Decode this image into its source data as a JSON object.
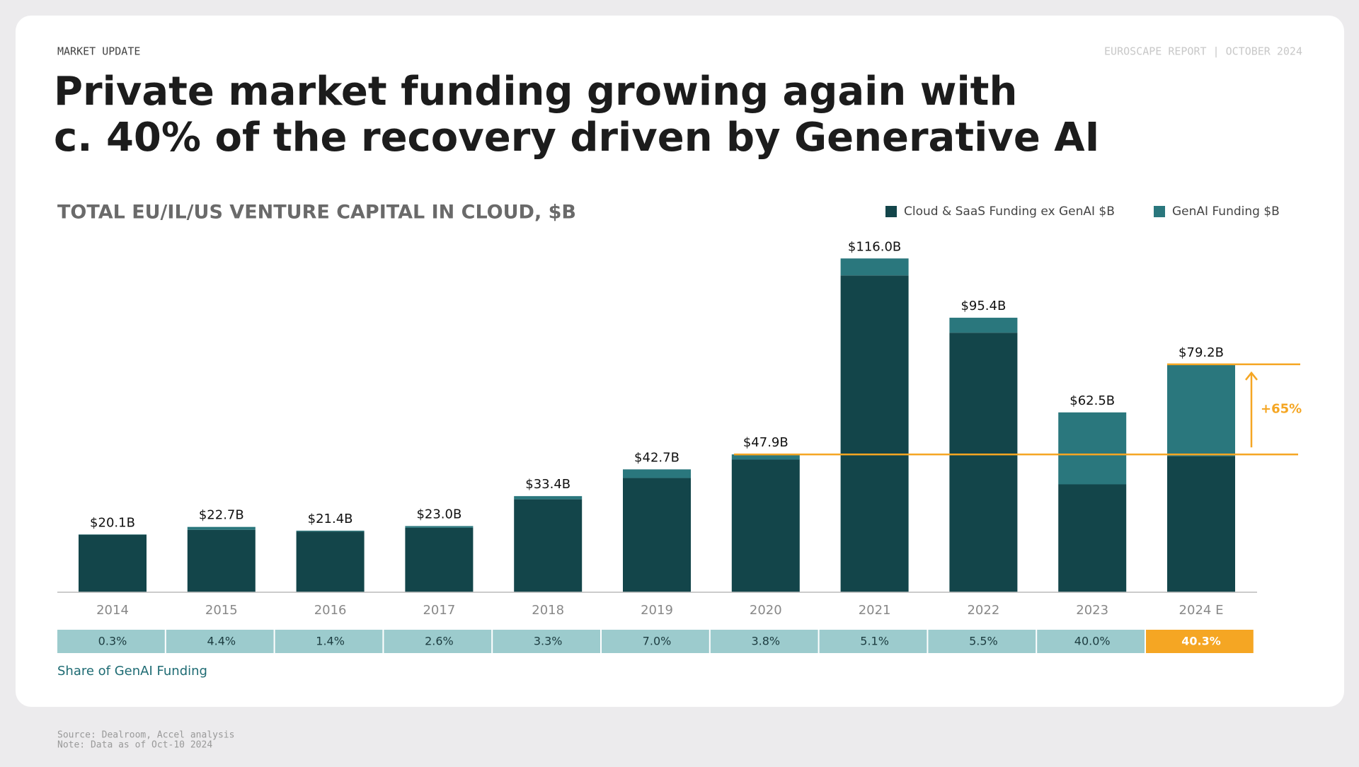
{
  "header": {
    "kicker": "MARKET UPDATE",
    "report": "EUROSCAPE REPORT | OCTOBER 2024",
    "title_lines": [
      "Private market funding growing again with",
      "c. 40% of the recovery driven by Generative AI"
    ]
  },
  "chart_data": {
    "type": "stacked_bar",
    "title": "TOTAL EU/IL/US VENTURE CAPITAL IN CLOUD, $B",
    "categories": [
      "2014",
      "2015",
      "2016",
      "2017",
      "2018",
      "2019",
      "2020",
      "2021",
      "2022",
      "2023",
      "2024 E"
    ],
    "series": [
      {
        "name": "Cloud & SaaS Funding ex GenAI $B",
        "color": "#13454a",
        "values": [
          20.0,
          21.7,
          21.1,
          22.4,
          32.3,
          39.7,
          46.1,
          110.1,
          90.2,
          37.5,
          47.3
        ]
      },
      {
        "name": "GenAI Funding $B",
        "color": "#2a777d",
        "values": [
          0.1,
          1.0,
          0.3,
          0.6,
          1.1,
          3.0,
          1.8,
          5.9,
          5.2,
          25.0,
          31.9
        ]
      }
    ],
    "totals": {
      "values": [
        20.1,
        22.7,
        21.4,
        23.0,
        33.4,
        42.7,
        47.9,
        116.0,
        95.4,
        62.5,
        79.2
      ],
      "value_labels": [
        "$20.1B",
        "$22.7B",
        "$21.4B",
        "$23.0B",
        "$33.4B",
        "$42.7B",
        "$47.9B",
        "$116.0B",
        "$95.4B",
        "$62.5B",
        "$79.2B"
      ]
    },
    "ylim": [
      0,
      120
    ],
    "annotation": {
      "label": "+65%",
      "from": 47.9,
      "to": 79.2,
      "color": "#f5a623"
    },
    "share_row": {
      "label": "Share of GenAI Funding",
      "cells": [
        "0.3%",
        "4.4%",
        "1.4%",
        "2.6%",
        "3.3%",
        "7.0%",
        "3.8%",
        "5.1%",
        "5.5%",
        "40.0%",
        "40.3%"
      ],
      "color": "#9ccbcd",
      "highlight": {
        "index": 10,
        "color": "#f5a623"
      }
    }
  },
  "footer": {
    "lines": [
      "Source: Dealroom, Accel analysis",
      "Note: Data as of Oct-10 2024"
    ]
  }
}
